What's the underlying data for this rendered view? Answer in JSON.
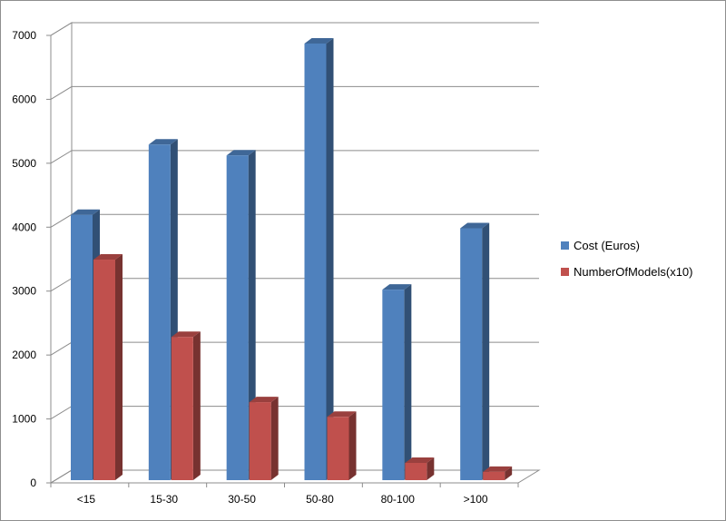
{
  "chart_data": {
    "type": "bar",
    "categories": [
      "<15",
      "15-30",
      "30-50",
      "50-80",
      "80-100",
      ">100"
    ],
    "series": [
      {
        "name": "Cost (Euros)",
        "values": [
          4150,
          5250,
          5080,
          6830,
          2980,
          3940
        ],
        "color": "#4f81bd"
      },
      {
        "name": "NumberOfModels(x10)",
        "values": [
          3450,
          2240,
          1220,
          990,
          270,
          130
        ],
        "color": "#c0504d"
      }
    ],
    "ylim": [
      0,
      7000
    ],
    "yticks": [
      "0",
      "1000",
      "2000",
      "3000",
      "4000",
      "5000",
      "6000",
      "7000"
    ],
    "grid": true,
    "legend_position": "right",
    "three_d": true
  }
}
